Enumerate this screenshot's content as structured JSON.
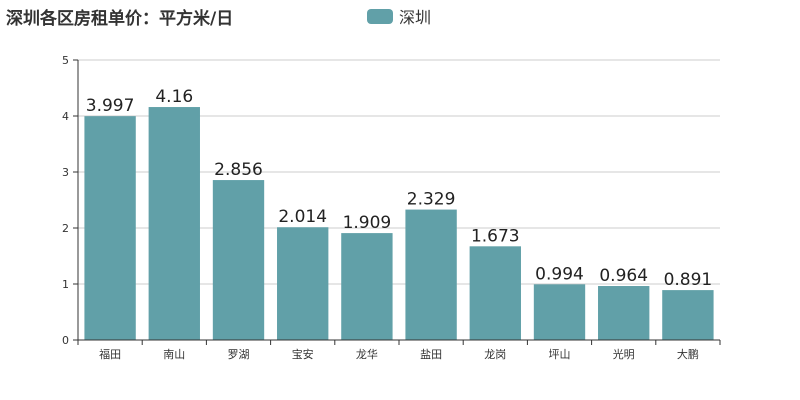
{
  "chart_data": {
    "type": "bar",
    "title": "深圳各区房租单价：平方米/日",
    "legend": {
      "position": "top-center"
    },
    "categories": [
      "福田",
      "南山",
      "罗湖",
      "宝安",
      "龙华",
      "盐田",
      "龙岗",
      "坪山",
      "光明",
      "大鹏"
    ],
    "series": [
      {
        "name": "深圳",
        "color": "#61a0a8",
        "values": [
          3.997,
          4.16,
          2.856,
          2.014,
          1.909,
          2.329,
          1.673,
          0.994,
          0.964,
          0.891
        ]
      }
    ],
    "ylim": [
      0,
      5
    ],
    "yticks": [
      "0",
      "1",
      "2",
      "3",
      "4",
      "5"
    ],
    "grid": true
  }
}
